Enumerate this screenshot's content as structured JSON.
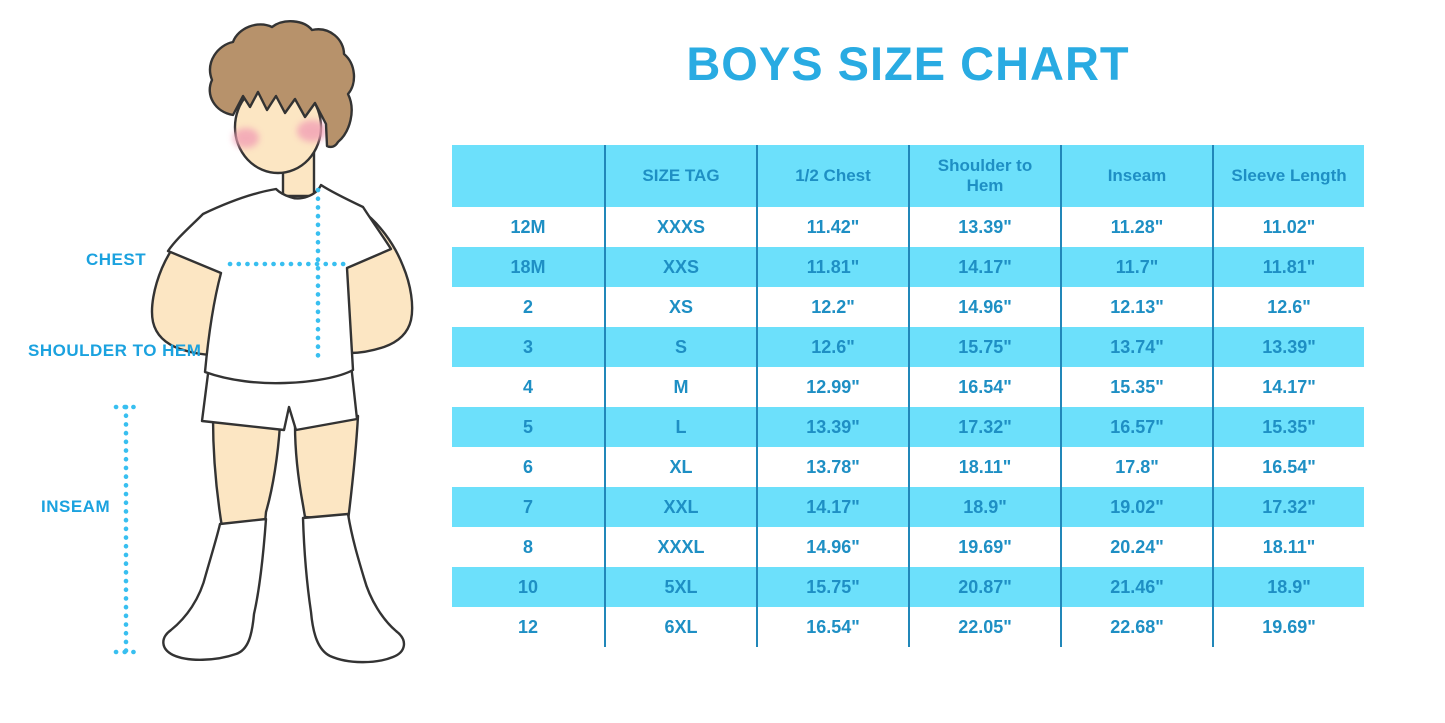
{
  "title": "BOYS SIZE CHART",
  "figure": {
    "name": "boy-measurement-illustration",
    "labels": {
      "chest": "CHEST",
      "shoulder_to_hem": "SHOULDER TO HEM",
      "inseam": "INSEAM"
    }
  },
  "colors": {
    "title_blue": "#29ABE2",
    "label_blue": "#1BA2DF",
    "row_cyan": "#6CE0FB",
    "table_text_blue": "#1E8FC4",
    "column_line_blue": "#2187B9",
    "dotted_line_blue": "#38BFF0",
    "skin": "#FCE6C3",
    "hair_brown": "#B7926B",
    "outline": "#333333"
  },
  "chart_data": {
    "type": "table",
    "title": "BOYS SIZE CHART",
    "columns": [
      "",
      "SIZE TAG",
      "1/2 Chest",
      "Shoulder to Hem",
      "Inseam",
      "Sleeve Length"
    ],
    "rows": [
      [
        "12M",
        "XXXS",
        "11.42\"",
        "13.39\"",
        "11.28\"",
        "11.02\""
      ],
      [
        "18M",
        "XXS",
        "11.81\"",
        "14.17\"",
        "11.7\"",
        "11.81\""
      ],
      [
        "2",
        "XS",
        "12.2\"",
        "14.96\"",
        "12.13\"",
        "12.6\""
      ],
      [
        "3",
        "S",
        "12.6\"",
        "15.75\"",
        "13.74\"",
        "13.39\""
      ],
      [
        "4",
        "M",
        "12.99\"",
        "16.54\"",
        "15.35\"",
        "14.17\""
      ],
      [
        "5",
        "L",
        "13.39\"",
        "17.32\"",
        "16.57\"",
        "15.35\""
      ],
      [
        "6",
        "XL",
        "13.78\"",
        "18.11\"",
        "17.8\"",
        "16.54\""
      ],
      [
        "7",
        "XXL",
        "14.17\"",
        "18.9\"",
        "19.02\"",
        "17.32\""
      ],
      [
        "8",
        "XXXL",
        "14.96\"",
        "19.69\"",
        "20.24\"",
        "18.11\""
      ],
      [
        "10",
        "5XL",
        "15.75\"",
        "20.87\"",
        "21.46\"",
        "18.9\""
      ],
      [
        "12",
        "6XL",
        "16.54\"",
        "22.05\"",
        "22.68\"",
        "19.69\""
      ]
    ],
    "row_striping": "header cyan, then rows alternate white/cyan starting with white",
    "legend_position": "none",
    "grid": "vertical column separators only"
  }
}
